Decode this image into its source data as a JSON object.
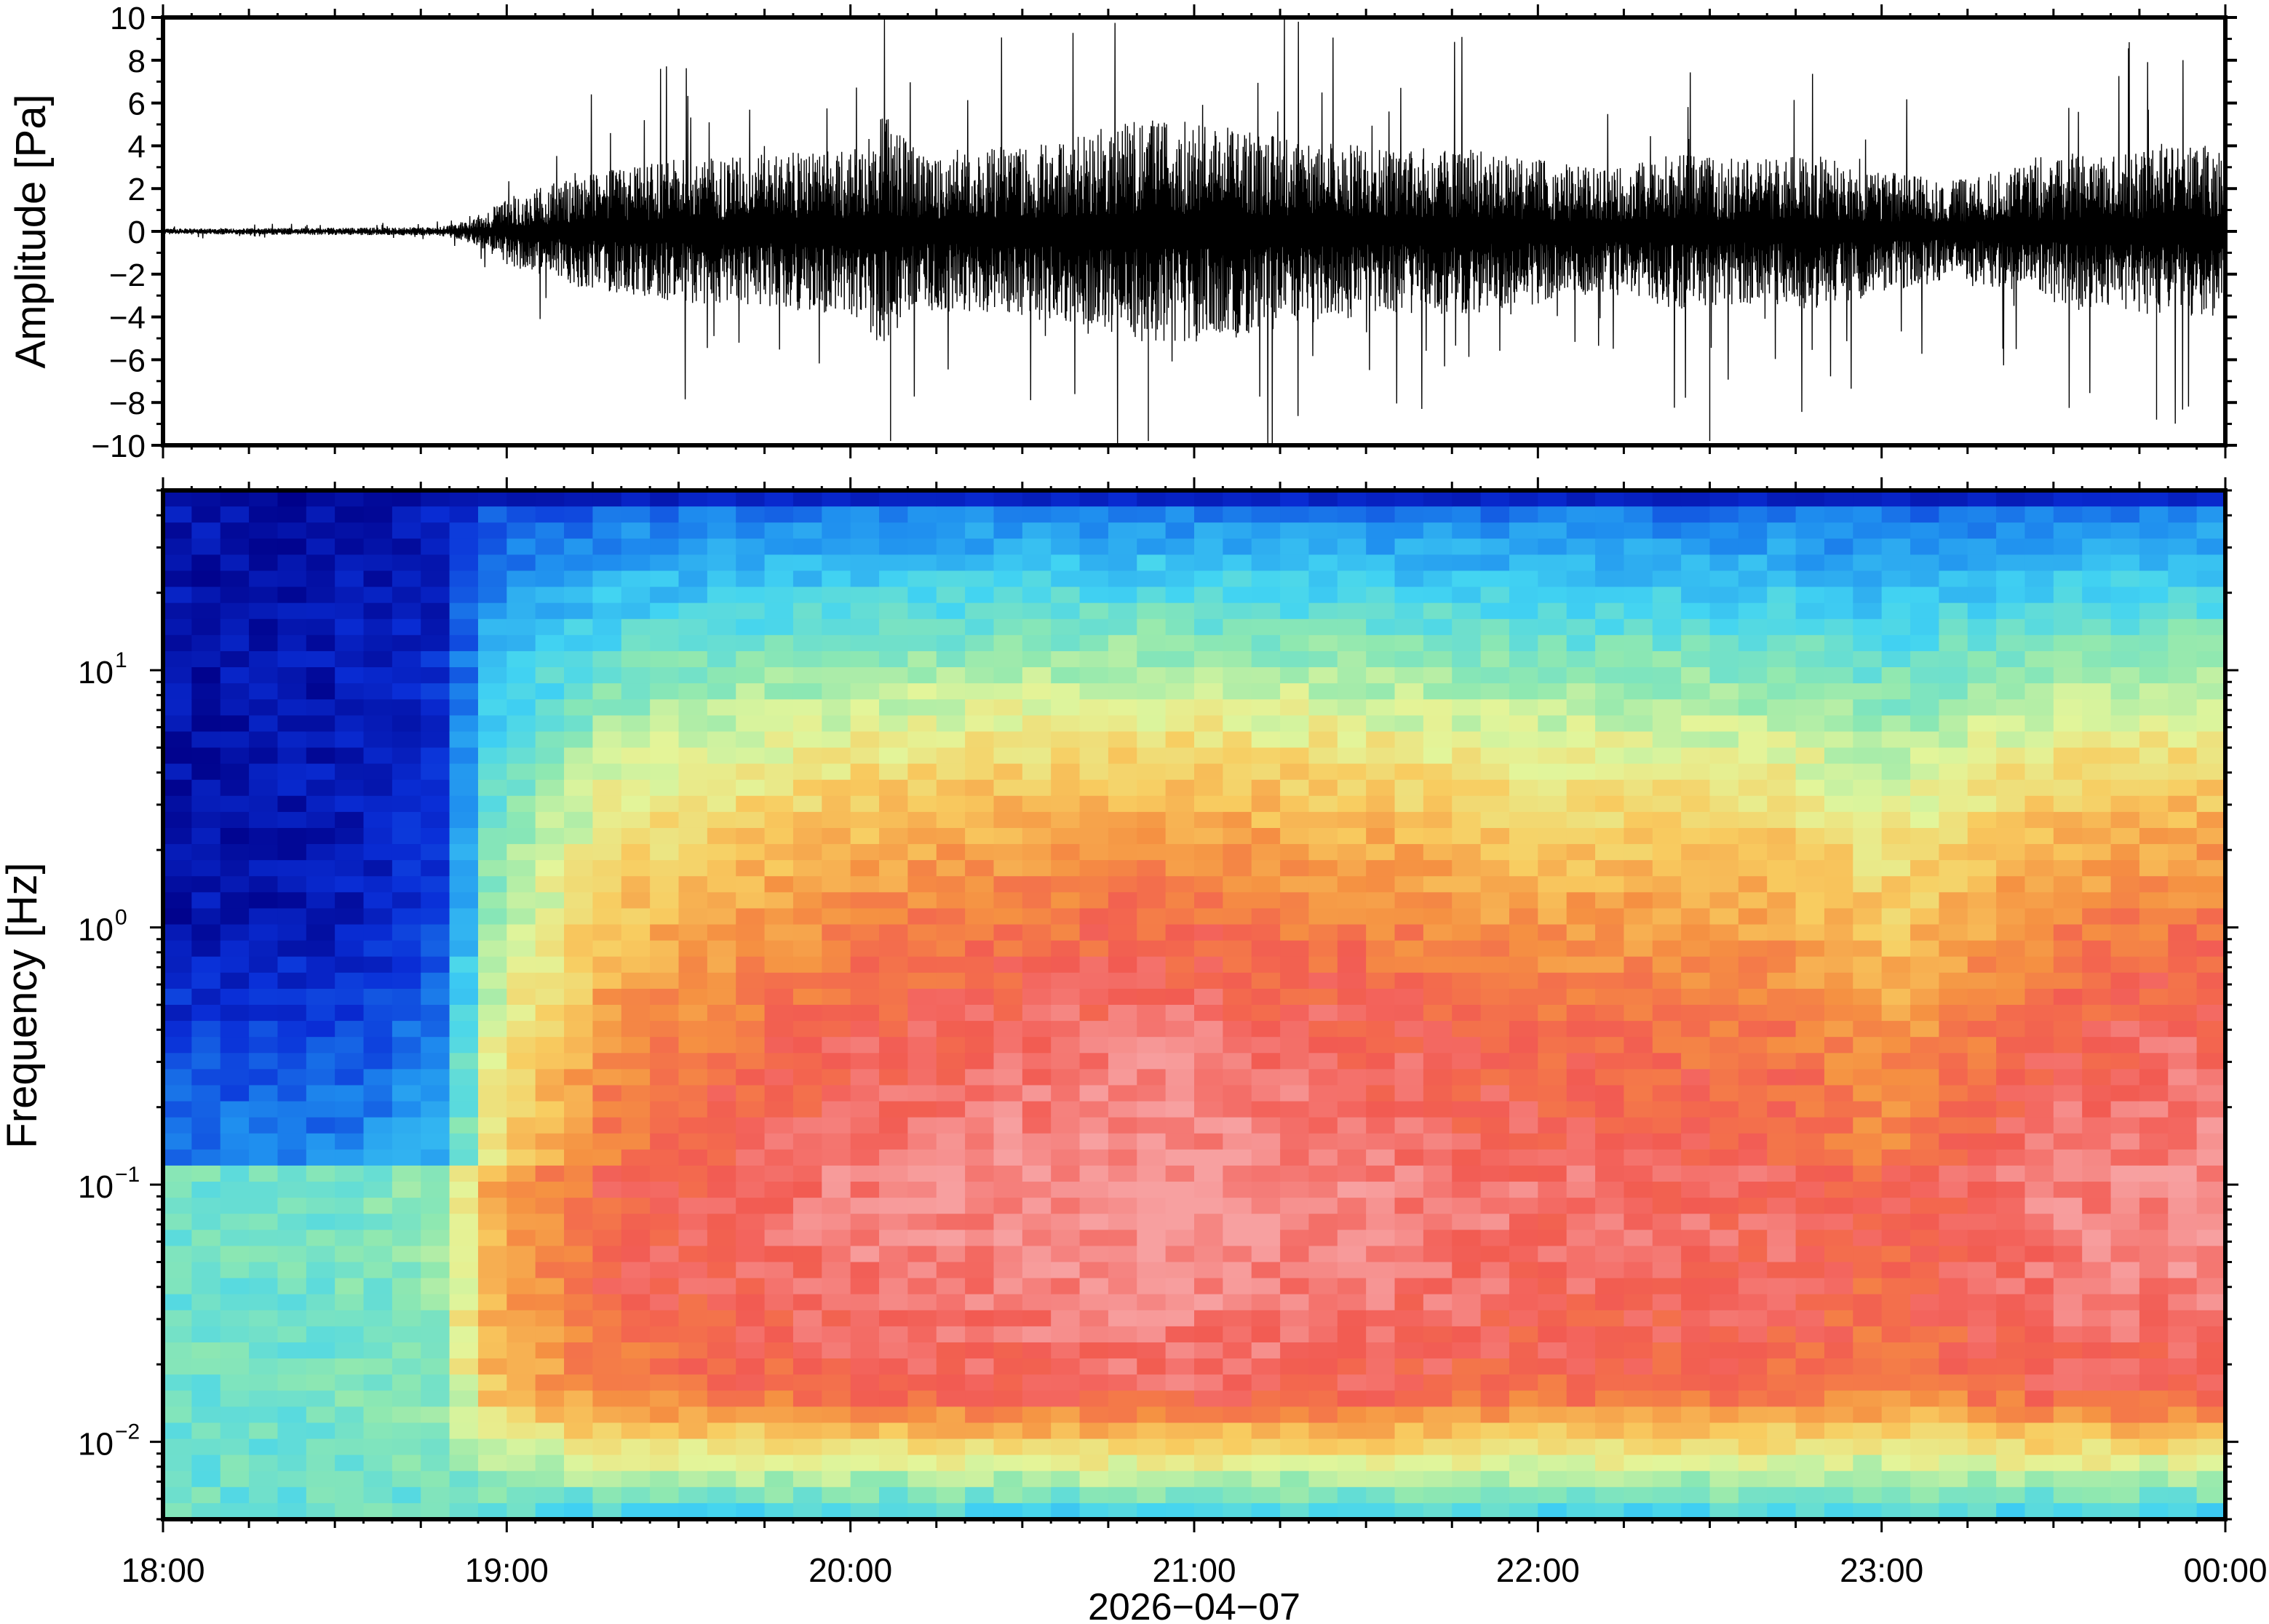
{
  "chart_data": [
    {
      "type": "line",
      "panel": "waveform",
      "ylabel": "Amplitude [Pa]",
      "ylim": [
        -10,
        10
      ],
      "yticks": [
        10,
        8,
        6,
        4,
        2,
        0,
        -2,
        -4,
        -6,
        -8,
        -10
      ],
      "ytick_labels": [
        "10",
        "8",
        "6",
        "4",
        "2",
        "0",
        "−2",
        "−4",
        "−6",
        "−8",
        "−10"
      ],
      "x_range": [
        "18:00",
        "00:00"
      ],
      "envelope": {
        "time_h": [
          0,
          0.8,
          0.9,
          1.0,
          1.2,
          1.5,
          1.8,
          2.0,
          2.1,
          2.2,
          2.4,
          2.6,
          2.8,
          3.0,
          3.2,
          3.4,
          3.6,
          3.8,
          4.0,
          4.2,
          4.4,
          4.6,
          4.8,
          5.0,
          5.2,
          5.5,
          5.8,
          6.0
        ],
        "typical_amp_pa": [
          0.1,
          0.15,
          0.4,
          1.2,
          2.0,
          2.6,
          2.8,
          3.0,
          4.2,
          2.8,
          3.0,
          3.2,
          4.0,
          4.0,
          3.6,
          3.2,
          3.0,
          3.0,
          2.6,
          2.2,
          2.8,
          2.6,
          2.8,
          2.2,
          1.8,
          2.6,
          3.0,
          3.2
        ]
      },
      "peaks_pa": [
        {
          "t": "20:07",
          "value": -9.8
        },
        {
          "t": "20:52",
          "value": -9.8
        },
        {
          "t": "22:30",
          "value": -9.8
        },
        {
          "t": "23:48",
          "value": -8.8
        }
      ]
    },
    {
      "type": "heatmap",
      "panel": "spectrogram",
      "ylabel": "Frequency [Hz]",
      "yscale": "log",
      "ylim_hz": [
        0.005,
        50
      ],
      "yticks": [
        {
          "base": "10",
          "exp": "1"
        },
        {
          "base": "10",
          "exp": "0"
        },
        {
          "base": "10",
          "exp": "−1"
        },
        {
          "base": "10",
          "exp": "−2"
        }
      ],
      "xticks": [
        "18:00",
        "19:00",
        "20:00",
        "21:00",
        "22:00",
        "23:00",
        "00:00"
      ],
      "xlabel": "2026−04−07",
      "colormap": "jet",
      "intensity_profile": {
        "time_h": [
          0,
          0.5,
          0.8,
          0.95,
          1.3,
          2.0,
          2.9,
          3.5,
          4.0,
          4.7,
          5.0,
          5.5,
          6.0
        ],
        "level": [
          0.0,
          0.02,
          0.1,
          0.55,
          0.8,
          0.92,
          0.98,
          0.93,
          0.88,
          0.86,
          0.78,
          0.92,
          0.95
        ]
      }
    }
  ]
}
